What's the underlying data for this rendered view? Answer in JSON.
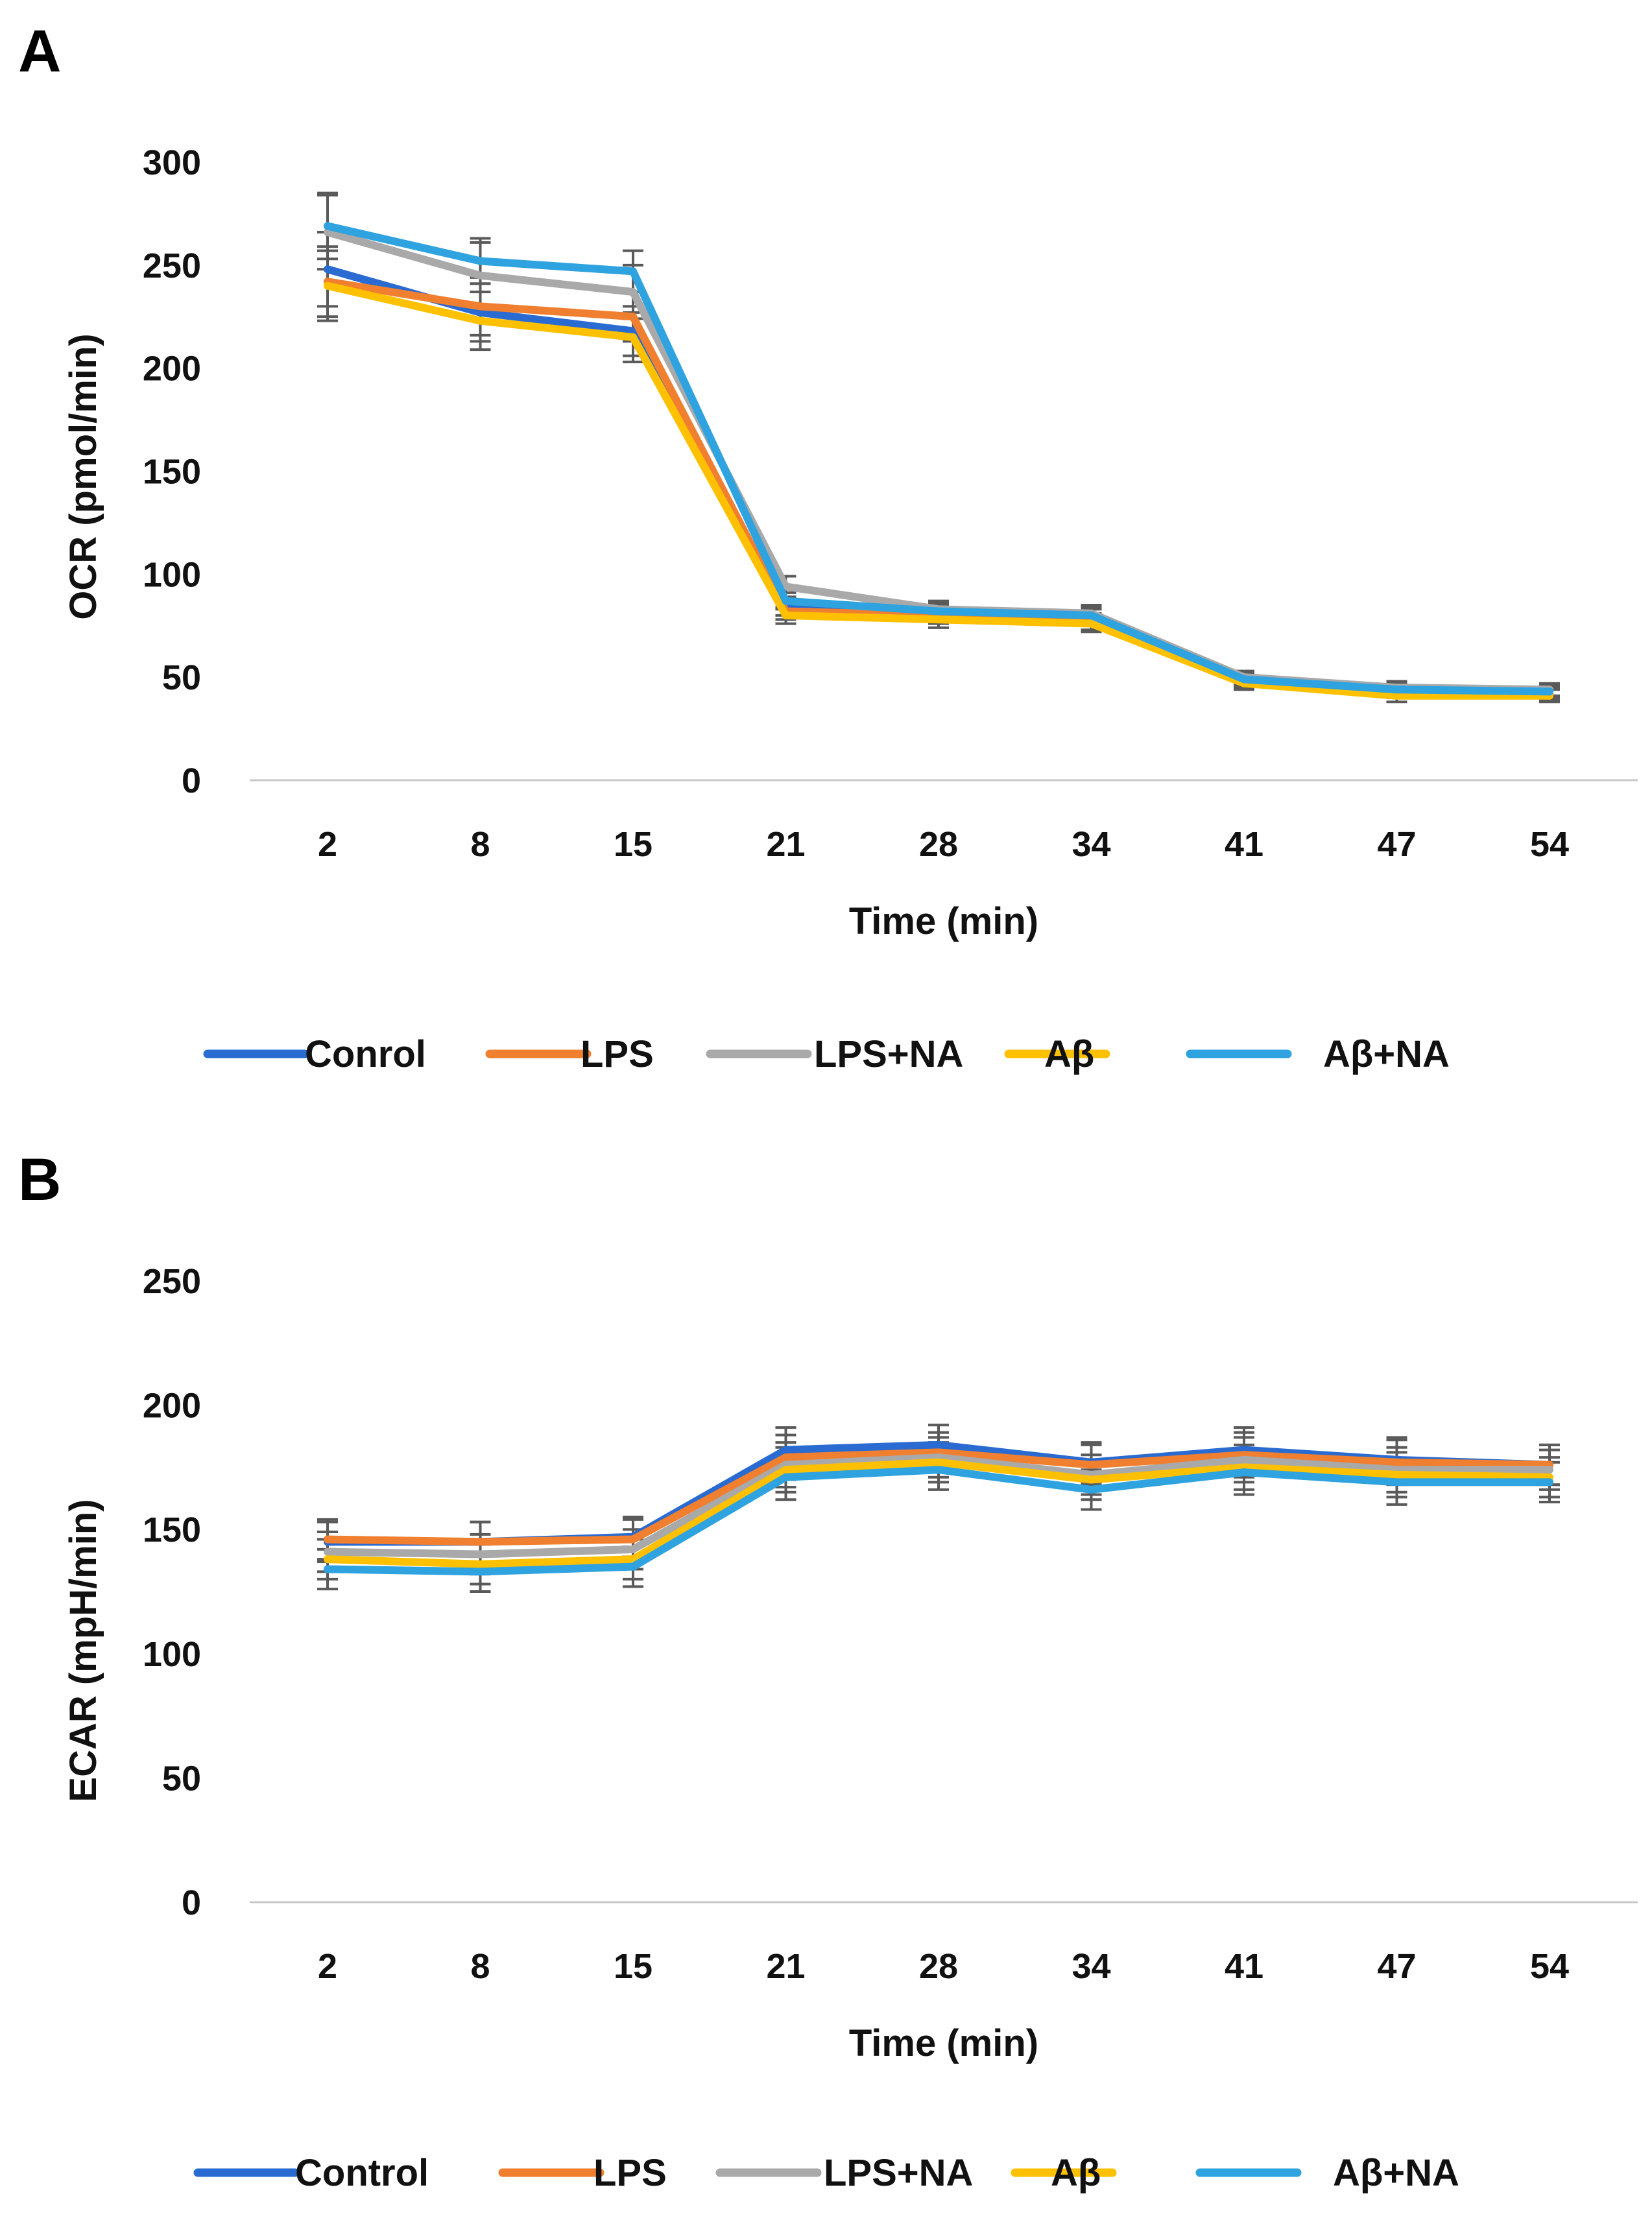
{
  "chart_data": [
    {
      "panel": "A",
      "type": "line",
      "title": "",
      "xlabel": "Time (min)",
      "ylabel": "OCR (pmol/min)",
      "categories": [
        "2",
        "8",
        "15",
        "21",
        "28",
        "34",
        "41",
        "47",
        "54"
      ],
      "yticks": [
        0,
        50,
        100,
        150,
        200,
        250,
        300
      ],
      "ylim": [
        0,
        300
      ],
      "grid": false,
      "legend_position": "bottom",
      "series": [
        {
          "name": "Conrol",
          "color": "#2a6bd1",
          "values": [
            248,
            227,
            218,
            84,
            81,
            79,
            49,
            44,
            43
          ],
          "errors": [
            18,
            14,
            12,
            4,
            4,
            4,
            3,
            3,
            3
          ]
        },
        {
          "name": "LPS",
          "color": "#f07f2f",
          "values": [
            242,
            230,
            225,
            82,
            80,
            77,
            48,
            43,
            42
          ],
          "errors": [
            17,
            14,
            12,
            4,
            4,
            4,
            3,
            3,
            3
          ]
        },
        {
          "name": "LPS+NA",
          "color": "#a9a9a9",
          "values": [
            266,
            245,
            237,
            94,
            83,
            81,
            50,
            45,
            44
          ],
          "errors": [
            18,
            16,
            13,
            5,
            4,
            4,
            3,
            3,
            3
          ]
        },
        {
          "name": "Aβ",
          "color": "#ffc000",
          "values": [
            240,
            223,
            215,
            80,
            78,
            76,
            47,
            41,
            41
          ],
          "errors": [
            17,
            14,
            12,
            4,
            4,
            4,
            3,
            3,
            3
          ]
        },
        {
          "name": "Aβ+NA",
          "color": "#2ea3e0",
          "values": [
            269,
            252,
            247,
            87,
            82,
            80,
            49,
            44,
            43
          ],
          "errors": [
            16,
            11,
            10,
            4,
            4,
            4,
            3,
            3,
            3
          ]
        }
      ]
    },
    {
      "panel": "B",
      "type": "line",
      "title": "",
      "xlabel": "Time (min)",
      "ylabel": "ECAR (mpH/min)",
      "categories": [
        "2",
        "8",
        "15",
        "21",
        "28",
        "34",
        "41",
        "47",
        "54"
      ],
      "yticks": [
        0,
        50,
        100,
        150,
        200,
        250
      ],
      "ylim": [
        0,
        250
      ],
      "grid": false,
      "legend_position": "bottom",
      "series": [
        {
          "name": "Control",
          "color": "#2a6bd1",
          "values": [
            145,
            145,
            147,
            182,
            184,
            177,
            182,
            178,
            176
          ],
          "errors": [
            8,
            8,
            8,
            9,
            8,
            8,
            9,
            9,
            8
          ]
        },
        {
          "name": "LPS",
          "color": "#f07f2f",
          "values": [
            146,
            145,
            146,
            179,
            181,
            176,
            180,
            177,
            176
          ],
          "errors": [
            8,
            8,
            8,
            9,
            8,
            8,
            9,
            9,
            8
          ]
        },
        {
          "name": "LPS+NA",
          "color": "#a9a9a9",
          "values": [
            141,
            140,
            142,
            176,
            179,
            172,
            178,
            174,
            174
          ],
          "errors": [
            8,
            8,
            8,
            9,
            8,
            8,
            9,
            9,
            8
          ]
        },
        {
          "name": "Aβ",
          "color": "#ffc000",
          "values": [
            138,
            136,
            138,
            174,
            177,
            170,
            175,
            172,
            171
          ],
          "errors": [
            8,
            8,
            8,
            9,
            8,
            8,
            9,
            9,
            8
          ]
        },
        {
          "name": "Aβ+NA",
          "color": "#2ea3e0",
          "values": [
            134,
            133,
            135,
            171,
            174,
            166,
            173,
            169,
            169
          ],
          "errors": [
            8,
            8,
            8,
            9,
            8,
            8,
            9,
            9,
            8
          ]
        }
      ]
    }
  ]
}
